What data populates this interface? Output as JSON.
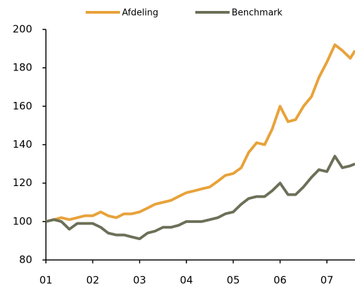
{
  "chart_data": {
    "type": "line",
    "x": [
      1,
      1.17,
      1.33,
      1.5,
      1.67,
      1.83,
      2,
      2.17,
      2.33,
      2.5,
      2.67,
      2.83,
      3,
      3.17,
      3.33,
      3.5,
      3.67,
      3.83,
      4,
      4.17,
      4.33,
      4.5,
      4.67,
      4.83,
      5,
      5.17,
      5.33,
      5.5,
      5.67,
      5.83,
      6,
      6.17,
      6.33,
      6.5,
      6.67,
      6.83,
      7,
      7.17,
      7.33,
      7.5,
      7.6
    ],
    "series": [
      {
        "name": "Afdeling",
        "color": "#e8a23a",
        "values": [
          100,
          101,
          102,
          101,
          102,
          103,
          103,
          105,
          103,
          102,
          104,
          104,
          105,
          107,
          109,
          110,
          111,
          113,
          115,
          116,
          117,
          118,
          121,
          124,
          125,
          128,
          136,
          141,
          140,
          148,
          160,
          152,
          153,
          160,
          165,
          175,
          183,
          192,
          189,
          185,
          189
        ]
      },
      {
        "name": "Benchmark",
        "color": "#6b7058",
        "values": [
          100,
          101,
          100,
          96,
          99,
          99,
          99,
          97,
          94,
          93,
          93,
          92,
          91,
          94,
          95,
          97,
          97,
          98,
          100,
          100,
          100,
          101,
          102,
          104,
          105,
          109,
          112,
          113,
          113,
          116,
          120,
          114,
          114,
          118,
          123,
          127,
          126,
          134,
          128,
          129,
          130
        ]
      }
    ],
    "xlim": [
      1,
      7.6
    ],
    "xticks": [
      {
        "value": 1,
        "label": "01"
      },
      {
        "value": 2,
        "label": "02"
      },
      {
        "value": 3,
        "label": "03"
      },
      {
        "value": 4,
        "label": "04"
      },
      {
        "value": 5,
        "label": "05"
      },
      {
        "value": 6,
        "label": "06"
      },
      {
        "value": 7,
        "label": "07"
      }
    ],
    "ylim": [
      80,
      200
    ],
    "yticks": [
      80,
      100,
      120,
      140,
      160,
      180,
      200
    ]
  }
}
